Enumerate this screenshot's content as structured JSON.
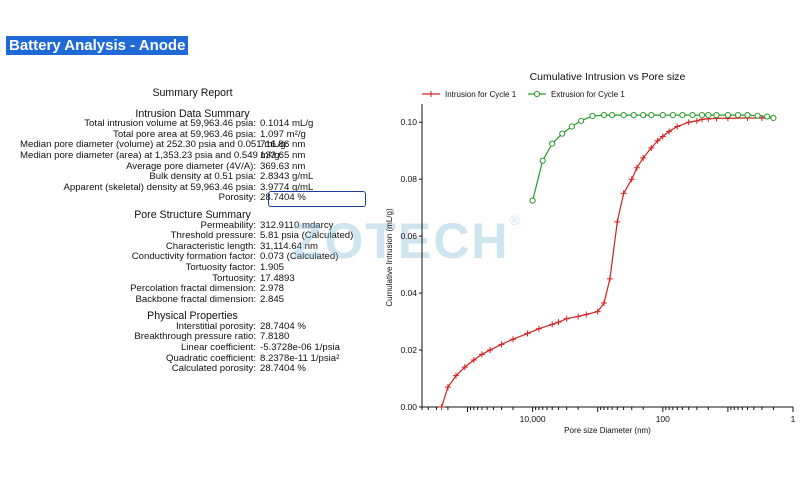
{
  "page_title": "Battery Analysis - Anode",
  "watermark": {
    "text": "ZOTECH",
    "mark": "®"
  },
  "summary": {
    "title": "Summary Report",
    "sections": [
      {
        "heading": "Intrusion Data Summary",
        "rows": [
          {
            "label": "Total intrusion volume at 59,963.46 psia:",
            "value": "0.1014 mL/g"
          },
          {
            "label": "Total pore area at 59,963.46 psia:",
            "value": "1.097 m²/g"
          },
          {
            "label": "Median pore diameter (volume) at 252.30 psia and 0.051 mL/g:",
            "value": "716.86 nm"
          },
          {
            "label": "Median pore diameter (area) at 1,353.23 psia and 0.549 m²/g:",
            "value": "133.65 nm"
          },
          {
            "label": "Average pore diameter (4V/A):",
            "value": "369.63 nm"
          },
          {
            "label": "Bulk density at 0.51 psia:",
            "value": "2.8343 g/mL"
          },
          {
            "label": "Apparent (skeletal) density at 59,963.46 psia:",
            "value": "3.9774 g/mL"
          },
          {
            "label": "Porosity:",
            "value": "28.7404 %",
            "highlight": true
          }
        ]
      },
      {
        "heading": "Pore Structure Summary",
        "rows": [
          {
            "label": "Permeability:",
            "value": "312.9110 mdarcy"
          },
          {
            "label": "Threshold pressure:",
            "value": "5.81 psia (Calculated)"
          },
          {
            "label": "Characteristic length:",
            "value": "31,114.64 nm"
          },
          {
            "label": "Conductivity formation factor:",
            "value": "0.073 (Calculated)"
          },
          {
            "label": "Tortuosity factor:",
            "value": "1.905"
          },
          {
            "label": "Tortuosity:",
            "value": "17.4893"
          },
          {
            "label": "Percolation fractal dimension:",
            "value": "2.978"
          },
          {
            "label": "Backbone fractal dimension:",
            "value": "2.845"
          }
        ]
      },
      {
        "heading": "Physical Properties",
        "rows": [
          {
            "label": "Interstitial porosity:",
            "value": "28.7404 %"
          },
          {
            "label": "Breakthrough pressure ratio:",
            "value": "7.8180"
          },
          {
            "label": "Linear coefficient:",
            "value": "-5.3728e-06 1/psia"
          },
          {
            "label": "Quadratic coefficient:",
            "value": "8.2378e-11 1/psia²"
          },
          {
            "label": "Calculated porosity:",
            "value": "28.7404 %"
          }
        ]
      }
    ]
  },
  "chart_data": {
    "type": "line",
    "title": "Cumulative Intrusion vs Pore size",
    "xlabel": "Pore size Diameter (nm)",
    "ylabel": "Cumulative Intrusion (mL/g)",
    "x_scale": "log",
    "x_reversed": true,
    "xlim": [
      500000,
      1
    ],
    "ylim": [
      0,
      0.105
    ],
    "x_ticks": [
      {
        "value": 10000,
        "label": "10,000"
      },
      {
        "value": 100,
        "label": "100"
      },
      {
        "value": 1,
        "label": "1"
      }
    ],
    "y_ticks": [
      {
        "value": 0,
        "label": "0.00"
      },
      {
        "value": 0.02,
        "label": "0.02"
      },
      {
        "value": 0.04,
        "label": "0.04"
      },
      {
        "value": 0.06,
        "label": "0.06"
      },
      {
        "value": 0.08,
        "label": "0.08"
      },
      {
        "value": 0.1,
        "label": "0.10"
      }
    ],
    "grid": false,
    "legend_position": "top-left",
    "series": [
      {
        "name": "Intrusion for Cycle 1",
        "color": "#d42020",
        "marker": "plus",
        "x": [
          250000,
          200000,
          150000,
          110000,
          80000,
          60000,
          45000,
          30000,
          20000,
          12000,
          8000,
          5000,
          4000,
          3000,
          2000,
          1500,
          1000,
          800,
          650,
          500,
          400,
          300,
          250,
          200,
          150,
          120,
          100,
          80,
          60,
          40,
          30,
          25,
          20,
          15,
          10,
          5,
          3,
          2
        ],
        "y": [
          0.0,
          0.007,
          0.011,
          0.014,
          0.0165,
          0.0185,
          0.02,
          0.022,
          0.0238,
          0.0258,
          0.0275,
          0.029,
          0.0298,
          0.031,
          0.0318,
          0.0325,
          0.0335,
          0.0365,
          0.045,
          0.065,
          0.075,
          0.08,
          0.084,
          0.0875,
          0.091,
          0.0935,
          0.095,
          0.0968,
          0.0985,
          0.1,
          0.1005,
          0.101,
          0.1012,
          0.1014,
          0.1014,
          0.1015,
          0.1015,
          0.1015
        ]
      },
      {
        "name": "Extrusion for Cycle 1",
        "color": "#2a9a2a",
        "marker": "circle",
        "x": [
          10000,
          7000,
          5000,
          3500,
          2500,
          1800,
          1200,
          800,
          600,
          400,
          280,
          200,
          150,
          100,
          70,
          50,
          35,
          25,
          20,
          15,
          10,
          7,
          5,
          3.5,
          2.5,
          2
        ],
        "y": [
          0.0725,
          0.0865,
          0.0925,
          0.096,
          0.0985,
          0.1005,
          0.1022,
          0.1025,
          0.1025,
          0.1025,
          0.1025,
          0.1025,
          0.1025,
          0.1025,
          0.1025,
          0.1025,
          0.1025,
          0.1025,
          0.1025,
          0.1025,
          0.1025,
          0.1025,
          0.1025,
          0.1023,
          0.102,
          0.1015
        ]
      }
    ]
  }
}
